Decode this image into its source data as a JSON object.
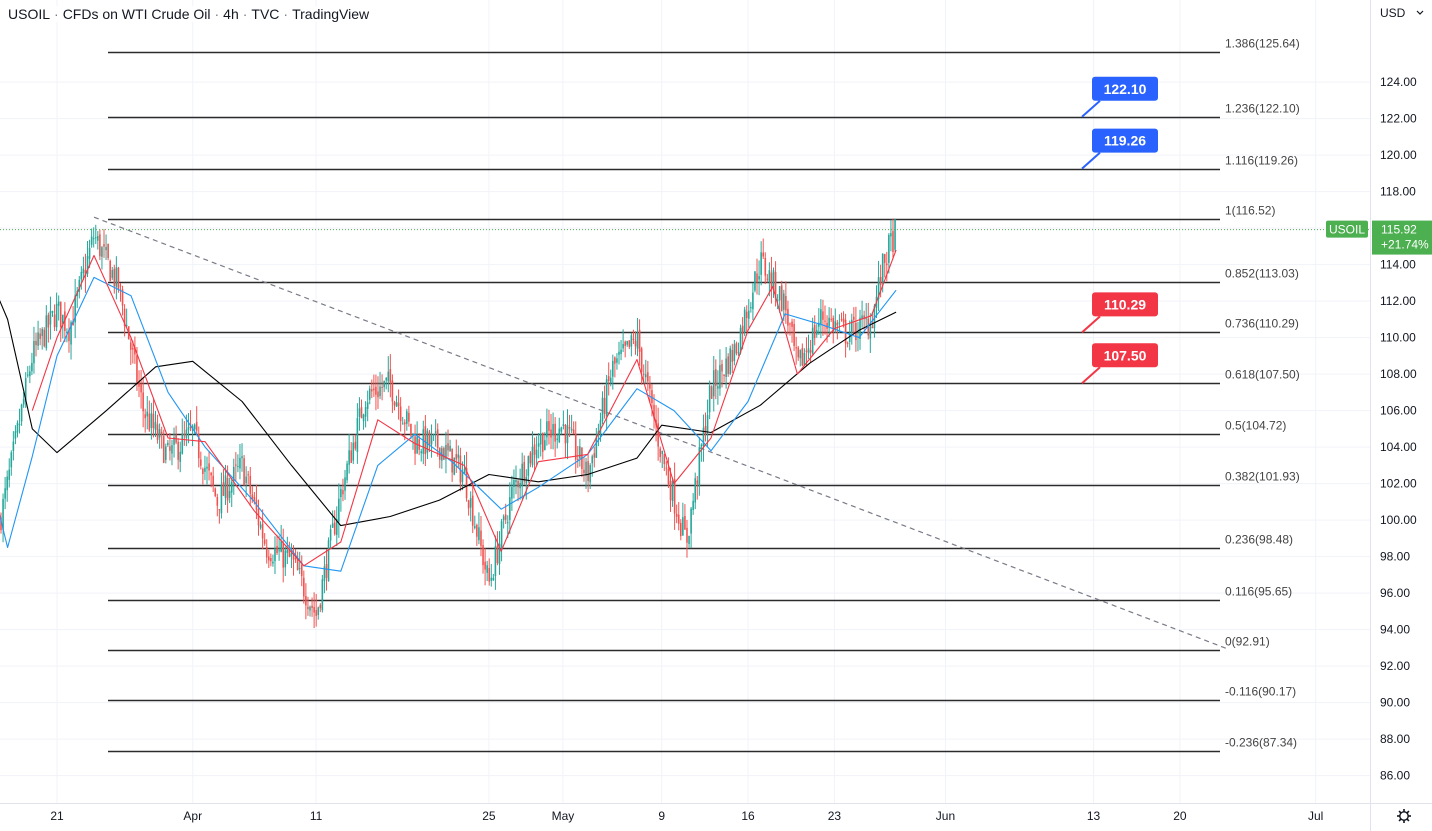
{
  "header": {
    "symbol": "USOIL",
    "description": "CFDs on WTI Crude Oil",
    "interval": "4h",
    "exchange": "TVC",
    "source": "TradingView"
  },
  "currency_label": "USD",
  "settings_icon": "gear-icon",
  "colors": {
    "up": "#26a69a",
    "down": "#ef5350",
    "fib_line": "#2b2b2b",
    "trendline": "#787b86",
    "ma_black": "#000000",
    "ma_red": "#f23645",
    "ma_blue": "#2196f3",
    "label_blue": "#2962ff",
    "label_red": "#f23645",
    "price_badge": "#4caf50",
    "grid": "#f0f3fa"
  },
  "chart_data": {
    "type": "candlestick",
    "y_axis": {
      "range": [
        84.5,
        128.5
      ],
      "ticks": [
        "86.00",
        "88.00",
        "90.00",
        "92.00",
        "94.00",
        "96.00",
        "98.00",
        "100.00",
        "102.00",
        "104.00",
        "106.00",
        "108.00",
        "110.00",
        "112.00",
        "114.00",
        "116.00",
        "118.00",
        "120.00",
        "122.00",
        "124.00"
      ]
    },
    "x_axis": {
      "ticks": [
        {
          "label": "21",
          "date": "2022-03-21"
        },
        {
          "label": "Apr",
          "date": "2022-04-01"
        },
        {
          "label": "11",
          "date": "2022-04-11"
        },
        {
          "label": "25",
          "date": "2022-04-25"
        },
        {
          "label": "May",
          "date": "2022-05-01"
        },
        {
          "label": "9",
          "date": "2022-05-09"
        },
        {
          "label": "16",
          "date": "2022-05-16"
        },
        {
          "label": "23",
          "date": "2022-05-23"
        },
        {
          "label": "Jun",
          "date": "2022-06-01"
        },
        {
          "label": "13",
          "date": "2022-06-13"
        },
        {
          "label": "20",
          "date": "2022-06-20"
        },
        {
          "label": "Jul",
          "date": "2022-07-01"
        }
      ]
    },
    "fib_levels": [
      {
        "label": "1.386(125.64)",
        "value": 125.64
      },
      {
        "label": "1.236(122.10)",
        "value": 122.1
      },
      {
        "label": "1.116(119.26)",
        "value": 119.26
      },
      {
        "label": "1(116.52)",
        "value": 116.52
      },
      {
        "label": "0.852(113.03)",
        "value": 113.03
      },
      {
        "label": "0.736(110.29)",
        "value": 110.29
      },
      {
        "label": "0.618(107.50)",
        "value": 107.5
      },
      {
        "label": "0.5(104.72)",
        "value": 104.72
      },
      {
        "label": "0.382(101.93)",
        "value": 101.93
      },
      {
        "label": "0.236(98.48)",
        "value": 98.48
      },
      {
        "label": "0.116(95.65)",
        "value": 95.65
      },
      {
        "label": "0(92.91)",
        "value": 92.91
      },
      {
        "label": "-0.116(90.17)",
        "value": 90.17
      },
      {
        "label": "-0.236(87.34)",
        "value": 87.34
      }
    ],
    "price_labels": [
      {
        "text": "122.10",
        "value": 122.1,
        "color": "blue"
      },
      {
        "text": "119.26",
        "value": 119.26,
        "color": "blue"
      },
      {
        "text": "110.29",
        "value": 110.29,
        "color": "red"
      },
      {
        "text": "107.50",
        "value": 107.5,
        "color": "red"
      }
    ],
    "trendline": {
      "from": {
        "date": "2022-03-24",
        "value": 116.6
      },
      "to": {
        "date": "2022-06-24",
        "value": 92.91
      }
    },
    "current": {
      "symbol": "USOIL",
      "price": "115.92",
      "change": "+21.74%",
      "value": 115.92
    },
    "price_path": [
      {
        "date": "2022-03-15",
        "value": 95.5
      },
      {
        "date": "2022-03-17",
        "value": 102
      },
      {
        "date": "2022-03-19",
        "value": 109
      },
      {
        "date": "2022-03-21",
        "value": 111.5
      },
      {
        "date": "2022-03-22",
        "value": 110.5
      },
      {
        "date": "2022-03-24",
        "value": 115.6
      },
      {
        "date": "2022-03-26",
        "value": 112.8
      },
      {
        "date": "2022-03-28",
        "value": 106
      },
      {
        "date": "2022-03-30",
        "value": 103.5
      },
      {
        "date": "2022-04-01",
        "value": 104.8
      },
      {
        "date": "2022-04-03",
        "value": 101
      },
      {
        "date": "2022-04-05",
        "value": 103
      },
      {
        "date": "2022-04-07",
        "value": 98.5
      },
      {
        "date": "2022-04-09",
        "value": 97.8
      },
      {
        "date": "2022-04-11",
        "value": 94.8
      },
      {
        "date": "2022-04-13",
        "value": 101.5
      },
      {
        "date": "2022-04-15",
        "value": 106.8
      },
      {
        "date": "2022-04-17",
        "value": 107.5
      },
      {
        "date": "2022-04-19",
        "value": 104.3
      },
      {
        "date": "2022-04-21",
        "value": 104.1
      },
      {
        "date": "2022-04-23",
        "value": 102.5
      },
      {
        "date": "2022-04-25",
        "value": 96.5
      },
      {
        "date": "2022-04-27",
        "value": 101.8
      },
      {
        "date": "2022-04-29",
        "value": 104.4
      },
      {
        "date": "2022-05-01",
        "value": 105.2
      },
      {
        "date": "2022-05-03",
        "value": 102.4
      },
      {
        "date": "2022-05-05",
        "value": 108.3
      },
      {
        "date": "2022-05-07",
        "value": 109.9
      },
      {
        "date": "2022-05-09",
        "value": 103.6
      },
      {
        "date": "2022-05-11",
        "value": 98.8
      },
      {
        "date": "2022-05-13",
        "value": 107.2
      },
      {
        "date": "2022-05-15",
        "value": 109.4
      },
      {
        "date": "2022-05-17",
        "value": 114.2
      },
      {
        "date": "2022-05-19",
        "value": 111.8
      },
      {
        "date": "2022-05-20",
        "value": 108.3
      },
      {
        "date": "2022-05-22",
        "value": 111.2
      },
      {
        "date": "2022-05-24",
        "value": 110.2
      },
      {
        "date": "2022-05-26",
        "value": 110.9
      },
      {
        "date": "2022-05-27",
        "value": 114.1
      },
      {
        "date": "2022-05-28",
        "value": 115.92
      }
    ],
    "series": [
      {
        "color": "black",
        "points": [
          {
            "date": "2022-03-15",
            "value": 114.2
          },
          {
            "date": "2022-03-17",
            "value": 111
          },
          {
            "date": "2022-03-19",
            "value": 105
          },
          {
            "date": "2022-03-21",
            "value": 103.7
          },
          {
            "date": "2022-03-25",
            "value": 106
          },
          {
            "date": "2022-03-29",
            "value": 108.4
          },
          {
            "date": "2022-04-01",
            "value": 108.7
          },
          {
            "date": "2022-04-05",
            "value": 106.5
          },
          {
            "date": "2022-04-09",
            "value": 103
          },
          {
            "date": "2022-04-13",
            "value": 99.7
          },
          {
            "date": "2022-04-17",
            "value": 100.2
          },
          {
            "date": "2022-04-21",
            "value": 101.1
          },
          {
            "date": "2022-04-25",
            "value": 102.5
          },
          {
            "date": "2022-04-29",
            "value": 102.1
          },
          {
            "date": "2022-05-03",
            "value": 102.5
          },
          {
            "date": "2022-05-07",
            "value": 103.4
          },
          {
            "date": "2022-05-09",
            "value": 105.2
          },
          {
            "date": "2022-05-13",
            "value": 104.8
          },
          {
            "date": "2022-05-17",
            "value": 106.3
          },
          {
            "date": "2022-05-21",
            "value": 108.6
          },
          {
            "date": "2022-05-25",
            "value": 110.4
          },
          {
            "date": "2022-05-28",
            "value": 111.4
          }
        ]
      },
      {
        "color": "blue",
        "points": [
          {
            "date": "2022-03-15",
            "value": 104
          },
          {
            "date": "2022-03-17",
            "value": 98.5
          },
          {
            "date": "2022-03-19",
            "value": 103.5
          },
          {
            "date": "2022-03-21",
            "value": 109
          },
          {
            "date": "2022-03-24",
            "value": 113.3
          },
          {
            "date": "2022-03-27",
            "value": 112.3
          },
          {
            "date": "2022-03-30",
            "value": 107
          },
          {
            "date": "2022-04-02",
            "value": 104
          },
          {
            "date": "2022-04-06",
            "value": 101
          },
          {
            "date": "2022-04-10",
            "value": 97.5
          },
          {
            "date": "2022-04-13",
            "value": 97.2
          },
          {
            "date": "2022-04-16",
            "value": 103
          },
          {
            "date": "2022-04-19",
            "value": 104.7
          },
          {
            "date": "2022-04-22",
            "value": 103.2
          },
          {
            "date": "2022-04-26",
            "value": 100.6
          },
          {
            "date": "2022-04-29",
            "value": 101.8
          },
          {
            "date": "2022-05-03",
            "value": 103.6
          },
          {
            "date": "2022-05-07",
            "value": 107.2
          },
          {
            "date": "2022-05-10",
            "value": 106
          },
          {
            "date": "2022-05-13",
            "value": 103.8
          },
          {
            "date": "2022-05-16",
            "value": 106.5
          },
          {
            "date": "2022-05-19",
            "value": 111.3
          },
          {
            "date": "2022-05-22",
            "value": 110.7
          },
          {
            "date": "2022-05-25",
            "value": 110
          },
          {
            "date": "2022-05-28",
            "value": 112.6
          }
        ]
      },
      {
        "color": "red",
        "points": [
          {
            "date": "2022-03-19",
            "value": 106
          },
          {
            "date": "2022-03-21",
            "value": 110
          },
          {
            "date": "2022-03-24",
            "value": 114.5
          },
          {
            "date": "2022-03-27",
            "value": 110
          },
          {
            "date": "2022-03-30",
            "value": 104.5
          },
          {
            "date": "2022-04-02",
            "value": 104.3
          },
          {
            "date": "2022-04-06",
            "value": 100.5
          },
          {
            "date": "2022-04-10",
            "value": 97.5
          },
          {
            "date": "2022-04-13",
            "value": 98.8
          },
          {
            "date": "2022-04-16",
            "value": 105.5
          },
          {
            "date": "2022-04-19",
            "value": 104.2
          },
          {
            "date": "2022-04-23",
            "value": 103
          },
          {
            "date": "2022-04-26",
            "value": 98.3
          },
          {
            "date": "2022-04-29",
            "value": 103.2
          },
          {
            "date": "2022-05-03",
            "value": 103.6
          },
          {
            "date": "2022-05-07",
            "value": 108.8
          },
          {
            "date": "2022-05-10",
            "value": 102
          },
          {
            "date": "2022-05-13",
            "value": 104.5
          },
          {
            "date": "2022-05-16",
            "value": 110.4
          },
          {
            "date": "2022-05-18",
            "value": 112.8
          },
          {
            "date": "2022-05-20",
            "value": 108
          },
          {
            "date": "2022-05-23",
            "value": 110.5
          },
          {
            "date": "2022-05-26",
            "value": 111.2
          },
          {
            "date": "2022-05-28",
            "value": 114.8
          }
        ]
      }
    ]
  }
}
